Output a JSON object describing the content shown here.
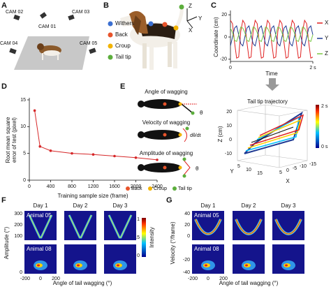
{
  "panel_labels": [
    "A",
    "B",
    "C",
    "D",
    "E",
    "F",
    "G"
  ],
  "panel_a": {
    "cameras": [
      "CAM 01",
      "CAM 02",
      "CAM 03",
      "CAM 04",
      "CAM 05"
    ]
  },
  "panel_b": {
    "legend": [
      "Withers",
      "Back",
      "Croup",
      "Tail tip"
    ],
    "axes": [
      "Z",
      "Y",
      "X"
    ]
  },
  "chart_data": [
    {
      "type": "line",
      "ylabel": "Coordinate (cm)",
      "xlabel": "Time",
      "x": [
        0,
        0.05,
        0.1,
        0.15,
        0.2,
        0.25,
        0.3,
        0.35,
        0.4,
        0.45,
        0.5,
        0.55,
        0.6,
        0.65,
        0.7,
        0.75,
        0.8,
        0.85,
        0.9,
        0.95,
        1,
        1.05,
        1.1,
        1.15,
        1.2,
        1.25,
        1.3,
        1.35,
        1.4,
        1.45,
        1.5,
        1.55,
        1.6,
        1.65,
        1.7,
        1.75,
        1.8,
        1.85,
        1.9,
        1.95,
        2
      ],
      "xlim": [
        0,
        2
      ],
      "xticks": [
        0,
        {
          "value": 2,
          "label": "2 s"
        }
      ],
      "ylim": [
        -22,
        22
      ],
      "yticks": [
        -20,
        0,
        20
      ],
      "series": [
        {
          "name": "X",
          "color": "#e02020",
          "values": [
            15,
            12,
            -5,
            -19,
            -18,
            5,
            15,
            12,
            -5,
            -19,
            -18,
            5,
            15,
            12,
            -5,
            -19,
            -18,
            5,
            15,
            12,
            -5,
            -19,
            -18,
            5,
            15,
            12,
            -5,
            -19,
            -18,
            5,
            15,
            12,
            -5,
            -19,
            -18,
            5,
            15,
            12,
            -5,
            -19,
            -18
          ]
        },
        {
          "name": "Y",
          "color": "#1f3a93",
          "values": [
            -8,
            0,
            8,
            10,
            2,
            -6,
            -8,
            0,
            8,
            10,
            2,
            -6,
            -8,
            0,
            8,
            10,
            2,
            -6,
            -8,
            0,
            8,
            10,
            2,
            -6,
            -8,
            0,
            8,
            10,
            2,
            -6,
            -8,
            0,
            8,
            10,
            2,
            -6,
            -8,
            0,
            8,
            10,
            2
          ]
        },
        {
          "name": "Z",
          "color": "#7ac943",
          "values": [
            8,
            4,
            -3,
            -4,
            2,
            9,
            8,
            4,
            -3,
            -4,
            2,
            9,
            8,
            4,
            -3,
            -4,
            2,
            9,
            8,
            4,
            -3,
            -4,
            2,
            9,
            8,
            4,
            -3,
            -4,
            2,
            9,
            8,
            4,
            -3,
            -4,
            2,
            9,
            8,
            4,
            -3,
            -4,
            2
          ]
        }
      ]
    },
    {
      "type": "line",
      "ylabel": [
        "Root mean square",
        "error of test (pixel)"
      ],
      "xlabel": "Training sample size (frame)",
      "x": [
        100,
        200,
        400,
        800,
        1200,
        1600,
        2000,
        2400
      ],
      "values": [
        13,
        6.3,
        5.5,
        5,
        4.8,
        4.5,
        4.2,
        3.8
      ],
      "color": "#d62728",
      "xlim": [
        0,
        2400
      ],
      "xticks": [
        0,
        400,
        800,
        1200,
        1600,
        2000,
        2400
      ],
      "ylim": [
        0,
        15
      ],
      "yticks": [
        0,
        5,
        10,
        15
      ]
    }
  ],
  "panel_3d": {
    "title": "Tail tip trajectory",
    "zlabel": "Z (cm)",
    "zticks": [
      "20",
      "10",
      "0",
      "-10"
    ],
    "xlabel": "X",
    "xticks": [
      "5",
      "0",
      "-5",
      "-10",
      "-15"
    ],
    "ylabel": "Y",
    "yticks": [
      "5",
      "10",
      "15"
    ],
    "colorbar": [
      "2 s",
      "0 s"
    ]
  },
  "panel_e": {
    "angle": "Angle of wagging",
    "theta": "θ",
    "velocity": "Velocity of wagging",
    "dtheta": "dθ/dt",
    "amplitude": "Amplitude of wagging",
    "legend": [
      "Back",
      "Croup",
      "Tail tip"
    ]
  },
  "panel_f": {
    "days": [
      "Day 1",
      "Day 2",
      "Day 3"
    ],
    "ylabel": "Amplitude (°)",
    "yticks": [
      "300",
      "200",
      "100",
      "0"
    ],
    "animals": [
      "Animal 05",
      "Animal 08"
    ],
    "xticks": [
      "-200",
      "0",
      "200"
    ],
    "xlabel": "Angle of tail wagging (°)",
    "colorbar_label": "Intensity",
    "colorbar_ticks": [
      "1",
      "0.5",
      "0"
    ]
  },
  "panel_g": {
    "days": [
      "Day 1",
      "Day 2",
      "Day 3"
    ],
    "ylabel": "Velocity (°/frame)",
    "yticks": [
      "40",
      "20",
      "0",
      "-20",
      "-40"
    ],
    "animals": [
      "Animal 05",
      "Animal 08"
    ],
    "xticks": [
      "-200",
      "0",
      "200"
    ],
    "xlabel": "Angle of tail wagging (°)"
  }
}
